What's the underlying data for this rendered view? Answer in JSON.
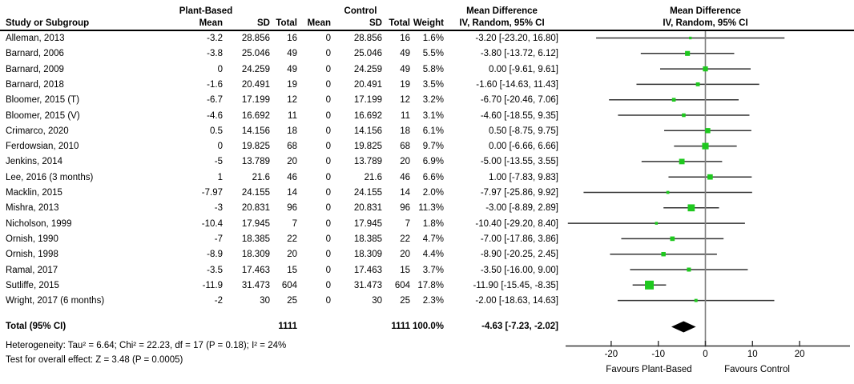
{
  "header": {
    "study_col": "Study or Subgroup",
    "group_plant": "Plant-Based",
    "group_control": "Control",
    "mean": "Mean",
    "sd": "SD",
    "total": "Total",
    "weight": "Weight",
    "md_title": "Mean Difference",
    "md_method": "IV, Random, 95% CI"
  },
  "chart_data": {
    "type": "forest",
    "effect_measure": "Mean Difference",
    "model": "IV, Random, 95% CI",
    "studies": [
      {
        "name": "Alleman, 2013",
        "mean": "-3.2",
        "sd": "28.856",
        "total": "16",
        "c_mean": "0",
        "c_sd": "28.856",
        "c_total": "16",
        "weight_label": "1.6%",
        "weight": 1.6,
        "est": -3.2,
        "lo": -23.2,
        "hi": 16.8,
        "ci_label": "-3.20 [-23.20, 16.80]"
      },
      {
        "name": "Barnard, 2006",
        "mean": "-3.8",
        "sd": "25.046",
        "total": "49",
        "c_mean": "0",
        "c_sd": "25.046",
        "c_total": "49",
        "weight_label": "5.5%",
        "weight": 5.5,
        "est": -3.8,
        "lo": -13.72,
        "hi": 6.12,
        "ci_label": "-3.80 [-13.72, 6.12]"
      },
      {
        "name": "Barnard, 2009",
        "mean": "0",
        "sd": "24.259",
        "total": "49",
        "c_mean": "0",
        "c_sd": "24.259",
        "c_total": "49",
        "weight_label": "5.8%",
        "weight": 5.8,
        "est": 0,
        "lo": -9.61,
        "hi": 9.61,
        "ci_label": "0.00 [-9.61, 9.61]"
      },
      {
        "name": "Barnard, 2018",
        "mean": "-1.6",
        "sd": "20.491",
        "total": "19",
        "c_mean": "0",
        "c_sd": "20.491",
        "c_total": "19",
        "weight_label": "3.5%",
        "weight": 3.5,
        "est": -1.6,
        "lo": -14.63,
        "hi": 11.43,
        "ci_label": "-1.60 [-14.63, 11.43]"
      },
      {
        "name": "Bloomer, 2015 (T)",
        "mean": "-6.7",
        "sd": "17.199",
        "total": "12",
        "c_mean": "0",
        "c_sd": "17.199",
        "c_total": "12",
        "weight_label": "3.2%",
        "weight": 3.2,
        "est": -6.7,
        "lo": -20.46,
        "hi": 7.06,
        "ci_label": "-6.70 [-20.46, 7.06]"
      },
      {
        "name": "Bloomer, 2015 (V)",
        "mean": "-4.6",
        "sd": "16.692",
        "total": "11",
        "c_mean": "0",
        "c_sd": "16.692",
        "c_total": "11",
        "weight_label": "3.1%",
        "weight": 3.1,
        "est": -4.6,
        "lo": -18.55,
        "hi": 9.35,
        "ci_label": "-4.60 [-18.55, 9.35]"
      },
      {
        "name": "Crimarco, 2020",
        "mean": "0.5",
        "sd": "14.156",
        "total": "18",
        "c_mean": "0",
        "c_sd": "14.156",
        "c_total": "18",
        "weight_label": "6.1%",
        "weight": 6.1,
        "est": 0.5,
        "lo": -8.75,
        "hi": 9.75,
        "ci_label": "0.50 [-8.75, 9.75]"
      },
      {
        "name": "Ferdowsian, 2010",
        "mean": "0",
        "sd": "19.825",
        "total": "68",
        "c_mean": "0",
        "c_sd": "19.825",
        "c_total": "68",
        "weight_label": "9.7%",
        "weight": 9.7,
        "est": 0,
        "lo": -6.66,
        "hi": 6.66,
        "ci_label": "0.00 [-6.66, 6.66]"
      },
      {
        "name": "Jenkins, 2014",
        "mean": "-5",
        "sd": "13.789",
        "total": "20",
        "c_mean": "0",
        "c_sd": "13.789",
        "c_total": "20",
        "weight_label": "6.9%",
        "weight": 6.9,
        "est": -5,
        "lo": -13.55,
        "hi": 3.55,
        "ci_label": "-5.00 [-13.55, 3.55]"
      },
      {
        "name": "Lee, 2016 (3 months)",
        "mean": "1",
        "sd": "21.6",
        "total": "46",
        "c_mean": "0",
        "c_sd": "21.6",
        "c_total": "46",
        "weight_label": "6.6%",
        "weight": 6.6,
        "est": 1,
        "lo": -7.83,
        "hi": 9.83,
        "ci_label": "1.00 [-7.83, 9.83]"
      },
      {
        "name": "Macklin, 2015",
        "mean": "-7.97",
        "sd": "24.155",
        "total": "14",
        "c_mean": "0",
        "c_sd": "24.155",
        "c_total": "14",
        "weight_label": "2.0%",
        "weight": 2.0,
        "est": -7.97,
        "lo": -25.86,
        "hi": 9.92,
        "ci_label": "-7.97 [-25.86, 9.92]"
      },
      {
        "name": "Mishra, 2013",
        "mean": "-3",
        "sd": "20.831",
        "total": "96",
        "c_mean": "0",
        "c_sd": "20.831",
        "c_total": "96",
        "weight_label": "11.3%",
        "weight": 11.3,
        "est": -3,
        "lo": -8.89,
        "hi": 2.89,
        "ci_label": "-3.00 [-8.89, 2.89]"
      },
      {
        "name": "Nicholson, 1999",
        "mean": "-10.4",
        "sd": "17.945",
        "total": "7",
        "c_mean": "0",
        "c_sd": "17.945",
        "c_total": "7",
        "weight_label": "1.8%",
        "weight": 1.8,
        "est": -10.4,
        "lo": -29.2,
        "hi": 8.4,
        "ci_label": "-10.40 [-29.20, 8.40]"
      },
      {
        "name": "Ornish, 1990",
        "mean": "-7",
        "sd": "18.385",
        "total": "22",
        "c_mean": "0",
        "c_sd": "18.385",
        "c_total": "22",
        "weight_label": "4.7%",
        "weight": 4.7,
        "est": -7,
        "lo": -17.86,
        "hi": 3.86,
        "ci_label": "-7.00 [-17.86, 3.86]"
      },
      {
        "name": "Ornish, 1998",
        "mean": "-8.9",
        "sd": "18.309",
        "total": "20",
        "c_mean": "0",
        "c_sd": "18.309",
        "c_total": "20",
        "weight_label": "4.4%",
        "weight": 4.4,
        "est": -8.9,
        "lo": -20.25,
        "hi": 2.45,
        "ci_label": "-8.90 [-20.25, 2.45]"
      },
      {
        "name": "Ramal, 2017",
        "mean": "-3.5",
        "sd": "17.463",
        "total": "15",
        "c_mean": "0",
        "c_sd": "17.463",
        "c_total": "15",
        "weight_label": "3.7%",
        "weight": 3.7,
        "est": -3.5,
        "lo": -16.0,
        "hi": 9.0,
        "ci_label": "-3.50 [-16.00, 9.00]"
      },
      {
        "name": "Sutliffe, 2015",
        "mean": "-11.9",
        "sd": "31.473",
        "total": "604",
        "c_mean": "0",
        "c_sd": "31.473",
        "c_total": "604",
        "weight_label": "17.8%",
        "weight": 17.8,
        "est": -11.9,
        "lo": -15.45,
        "hi": -8.35,
        "ci_label": "-11.90 [-15.45, -8.35]"
      },
      {
        "name": "Wright, 2017 (6 months)",
        "mean": "-2",
        "sd": "30",
        "total": "25",
        "c_mean": "0",
        "c_sd": "30",
        "c_total": "25",
        "weight_label": "2.3%",
        "weight": 2.3,
        "est": -2,
        "lo": -18.63,
        "hi": 14.63,
        "ci_label": "-2.00 [-18.63, 14.63]"
      }
    ],
    "total": {
      "label": "Total (95% CI)",
      "total": "1111",
      "c_total": "1111",
      "weight_label": "100.0%",
      "est": -4.63,
      "lo": -7.23,
      "hi": -2.02,
      "ci_label": "-4.63 [-7.23, -2.02]"
    },
    "heterogeneity": "Heterogeneity: Tau² = 6.64; Chi² = 22.23, df = 17 (P = 0.18); I² = 24%",
    "overall_effect": "Test for overall effect: Z = 3.48 (P = 0.0005)",
    "axis": {
      "ticks": [
        -20,
        -10,
        0,
        10,
        20
      ],
      "min": -30,
      "max": 30.5,
      "left_label": "Favours Plant-Based",
      "right_label": "Favours Control"
    },
    "colors": {
      "square": "#1ec81e",
      "diamond": "#000000",
      "ci_line": "#333333",
      "zero_line": "#7f7f7f",
      "axis": "#333333"
    }
  }
}
